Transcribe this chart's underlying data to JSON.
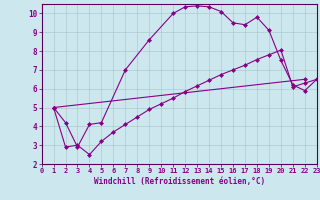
{
  "xlabel": "Windchill (Refroidissement éolien,°C)",
  "bg_color": "#cce8ee",
  "grid_color": "#aacccc",
  "line_color": "#880088",
  "spine_color": "#550055",
  "marker": "D",
  "markersize": 2.0,
  "linewidth": 0.8,
  "xlim": [
    0,
    23
  ],
  "ylim": [
    2,
    10.5
  ],
  "xticks": [
    0,
    1,
    2,
    3,
    4,
    5,
    6,
    7,
    8,
    9,
    10,
    11,
    12,
    13,
    14,
    15,
    16,
    17,
    18,
    19,
    20,
    21,
    22,
    23
  ],
  "yticks": [
    2,
    3,
    4,
    5,
    6,
    7,
    8,
    9,
    10
  ],
  "curve1_x": [
    1,
    2,
    3,
    4,
    5,
    7,
    9,
    11,
    12,
    13,
    14,
    15,
    16,
    17,
    18,
    19,
    20,
    21,
    22,
    23
  ],
  "curve1_y": [
    5.0,
    4.2,
    2.9,
    4.1,
    4.2,
    7.0,
    8.6,
    10.0,
    10.35,
    10.4,
    10.35,
    10.1,
    9.5,
    9.4,
    9.8,
    9.1,
    7.5,
    6.2,
    5.9,
    6.5
  ],
  "curve2_x": [
    1,
    2,
    3,
    4,
    5,
    6,
    7,
    8,
    9,
    10,
    11,
    12,
    13,
    14,
    15,
    16,
    17,
    18,
    19,
    20,
    21,
    22,
    23
  ],
  "curve2_y": [
    5.0,
    2.9,
    3.0,
    2.5,
    3.2,
    3.7,
    4.1,
    4.5,
    4.9,
    5.2,
    5.5,
    5.85,
    6.15,
    6.45,
    6.75,
    7.0,
    7.25,
    7.55,
    7.8,
    8.05,
    6.1,
    6.3,
    6.5
  ],
  "curve3_x": [
    1,
    22
  ],
  "curve3_y": [
    5.0,
    6.5
  ]
}
